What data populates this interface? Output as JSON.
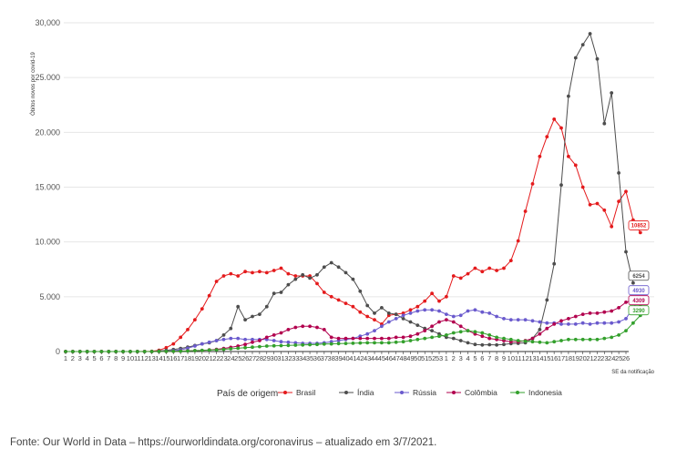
{
  "caption": "Fonte: Our World in Data – https://ourworldindata.org/coronavirus – atualizado em 3/7/2021.",
  "chart_data": {
    "type": "line",
    "ylabel": "Óbitos novos por covid-19",
    "xlabel": "SE da notificação",
    "ylim": [
      0,
      30000
    ],
    "yticks": [
      {
        "value": 0,
        "label": "0"
      },
      {
        "value": 5000,
        "label": "5.000"
      },
      {
        "value": 10000,
        "label": "10.000"
      },
      {
        "value": 15000,
        "label": "15.000"
      },
      {
        "value": 20000,
        "label": "20.000"
      },
      {
        "value": 25000,
        "label": "25.000"
      },
      {
        "value": 30000,
        "label": "30,000"
      }
    ],
    "grid": true,
    "legend_title": "País de origem",
    "legend_position": "bottom",
    "x_tick_labels": [
      "1",
      "2",
      "3",
      "4",
      "5",
      "6",
      "7",
      "8",
      "9",
      "10",
      "11",
      "12",
      "13",
      "14",
      "15",
      "16",
      "17",
      "18",
      "19",
      "20",
      "21",
      "22",
      "23",
      "24",
      "25",
      "26",
      "27",
      "28",
      "29",
      "30",
      "31",
      "32",
      "33",
      "34",
      "35",
      "36",
      "37",
      "38",
      "39",
      "40",
      "41",
      "42",
      "43",
      "44",
      "45",
      "46",
      "47",
      "48",
      "49",
      "50",
      "51",
      "52",
      "53",
      "1",
      "2",
      "3",
      "4",
      "5",
      "6",
      "7",
      "8",
      "9",
      "10",
      "11",
      "12",
      "13",
      "14",
      "15",
      "16",
      "17",
      "18",
      "19",
      "20",
      "21",
      "22",
      "23",
      "24",
      "25",
      "26"
    ],
    "series": [
      {
        "name": "Brasil",
        "color": "#e41a1c",
        "end_label": "10852",
        "values": [
          0,
          0,
          0,
          0,
          0,
          0,
          0,
          0,
          0,
          0,
          0,
          5,
          20,
          120,
          350,
          700,
          1300,
          2000,
          2900,
          3900,
          5100,
          6400,
          6900,
          7100,
          6900,
          7300,
          7200,
          7300,
          7200,
          7400,
          7600,
          7100,
          6900,
          6900,
          6900,
          6200,
          5400,
          5000,
          4700,
          4400,
          4100,
          3600,
          3200,
          2900,
          2500,
          3300,
          3400,
          3500,
          3800,
          4100,
          4600,
          5300,
          4600,
          5000,
          6900,
          6700,
          7100,
          7600,
          7300,
          7600,
          7400,
          7600,
          8300,
          10100,
          12800,
          15300,
          17800,
          19600,
          21200,
          20400,
          17800,
          17000,
          15000,
          13400,
          13500,
          12900,
          11400,
          13700,
          14600,
          12000,
          10852
        ]
      },
      {
        "name": "Índia",
        "color": "#4d4d4d",
        "end_label": "6254",
        "values": [
          0,
          0,
          0,
          0,
          0,
          0,
          0,
          0,
          0,
          0,
          0,
          0,
          0,
          50,
          100,
          180,
          280,
          400,
          550,
          700,
          800,
          1000,
          1500,
          2100,
          4100,
          2900,
          3200,
          3400,
          4100,
          5300,
          5400,
          6100,
          6600,
          7000,
          6700,
          7000,
          7700,
          8100,
          7700,
          7200,
          6600,
          5500,
          4200,
          3500,
          4000,
          3500,
          3400,
          3000,
          2700,
          2400,
          2100,
          1900,
          1600,
          1300,
          1200,
          1000,
          800,
          650,
          600,
          620,
          600,
          650,
          720,
          750,
          800,
          1200,
          2000,
          4700,
          8000,
          15200,
          23300,
          26800,
          28000,
          29000,
          26700,
          20800,
          23600,
          16300,
          9100,
          6254
        ]
      },
      {
        "name": "Rússia",
        "color": "#6a5acd",
        "end_label": "4930",
        "values": [
          0,
          0,
          0,
          0,
          0,
          0,
          0,
          0,
          0,
          0,
          0,
          0,
          0,
          10,
          30,
          80,
          150,
          300,
          500,
          700,
          850,
          1000,
          1100,
          1200,
          1200,
          1100,
          1100,
          1100,
          1100,
          1000,
          900,
          850,
          800,
          750,
          750,
          750,
          800,
          900,
          1000,
          1100,
          1200,
          1400,
          1600,
          1900,
          2300,
          2700,
          3000,
          3300,
          3500,
          3700,
          3800,
          3800,
          3700,
          3400,
          3200,
          3300,
          3700,
          3800,
          3600,
          3500,
          3200,
          3000,
          2900,
          2900,
          2900,
          2800,
          2700,
          2600,
          2600,
          2500,
          2500,
          2500,
          2600,
          2500,
          2600,
          2600,
          2600,
          2700,
          3000,
          4000,
          4930
        ]
      },
      {
        "name": "Colômbia",
        "color": "#b2004e",
        "end_label": "4309",
        "values": [
          0,
          0,
          0,
          0,
          0,
          0,
          0,
          0,
          0,
          0,
          0,
          0,
          0,
          5,
          10,
          20,
          40,
          60,
          80,
          100,
          150,
          200,
          280,
          380,
          500,
          650,
          850,
          1000,
          1300,
          1500,
          1700,
          2000,
          2200,
          2300,
          2300,
          2200,
          2000,
          1300,
          1200,
          1200,
          1200,
          1200,
          1200,
          1200,
          1200,
          1200,
          1300,
          1300,
          1400,
          1600,
          1900,
          2300,
          2700,
          2900,
          2700,
          2300,
          1900,
          1600,
          1400,
          1200,
          1100,
          1000,
          900,
          900,
          1000,
          1200,
          1600,
          2100,
          2500,
          2800,
          3000,
          3200,
          3400,
          3500,
          3500,
          3600,
          3700,
          4000,
          4500,
          4700,
          4309
        ]
      },
      {
        "name": "Indonesia",
        "color": "#33a02c",
        "end_label": "3290",
        "values": [
          0,
          0,
          0,
          0,
          0,
          0,
          0,
          0,
          0,
          0,
          0,
          0,
          0,
          5,
          10,
          20,
          30,
          50,
          80,
          100,
          130,
          160,
          200,
          250,
          300,
          350,
          400,
          450,
          500,
          520,
          540,
          560,
          580,
          600,
          620,
          650,
          680,
          700,
          720,
          740,
          760,
          780,
          800,
          800,
          800,
          800,
          850,
          900,
          1000,
          1100,
          1200,
          1300,
          1400,
          1500,
          1700,
          1800,
          1900,
          1800,
          1700,
          1500,
          1300,
          1200,
          1100,
          1000,
          950,
          900,
          850,
          800,
          900,
          1000,
          1100,
          1100,
          1100,
          1100,
          1100,
          1200,
          1300,
          1500,
          1900,
          2600,
          3290
        ]
      }
    ]
  }
}
